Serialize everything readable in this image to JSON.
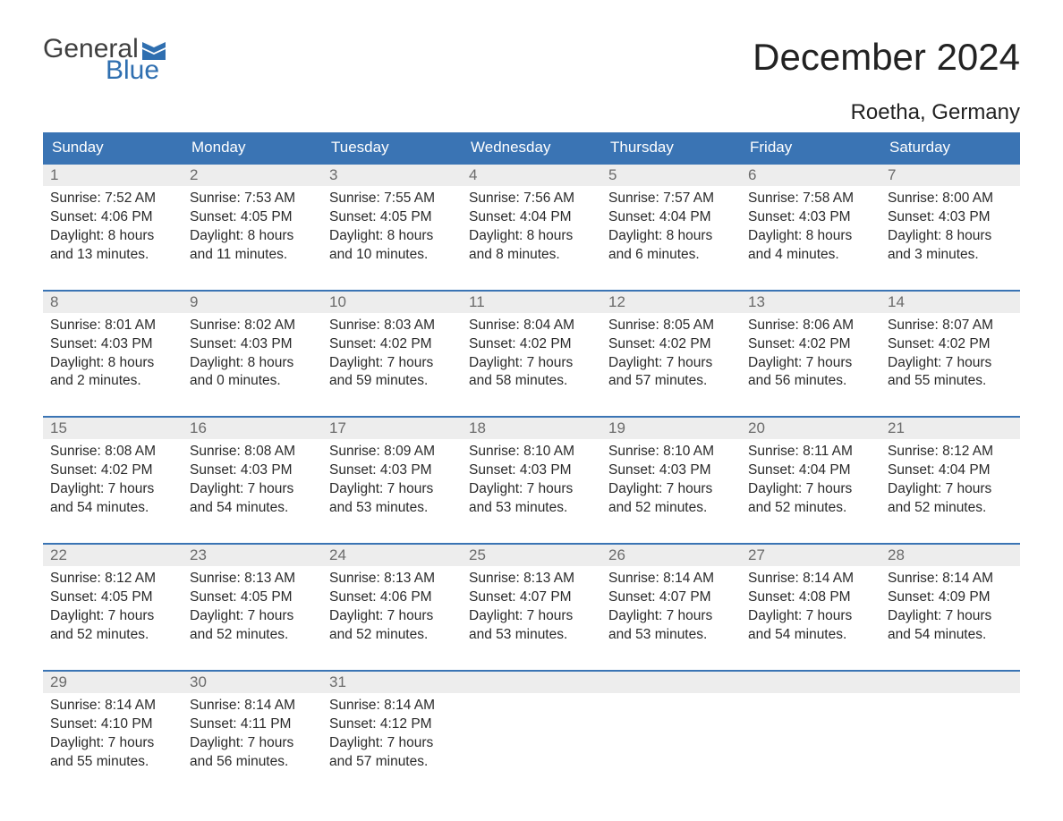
{
  "logo": {
    "text_general": "General",
    "text_blue": "Blue",
    "flag_color": "#2f6fb0"
  },
  "title": "December 2024",
  "location": "Roetha, Germany",
  "colors": {
    "header_bg": "#3a74b4",
    "header_text": "#ffffff",
    "daynum_bg": "#ededed",
    "daynum_text": "#6b6b6b",
    "body_text": "#2a2a2a",
    "week_border": "#3a74b4",
    "page_bg": "#ffffff"
  },
  "typography": {
    "title_fontsize": 42,
    "location_fontsize": 24,
    "header_fontsize": 17,
    "daynum_fontsize": 17,
    "cell_fontsize": 15.5
  },
  "weekdays": [
    "Sunday",
    "Monday",
    "Tuesday",
    "Wednesday",
    "Thursday",
    "Friday",
    "Saturday"
  ],
  "weeks": [
    [
      {
        "n": "1",
        "sr": "Sunrise: 7:52 AM",
        "ss": "Sunset: 4:06 PM",
        "d1": "Daylight: 8 hours",
        "d2": "and 13 minutes."
      },
      {
        "n": "2",
        "sr": "Sunrise: 7:53 AM",
        "ss": "Sunset: 4:05 PM",
        "d1": "Daylight: 8 hours",
        "d2": "and 11 minutes."
      },
      {
        "n": "3",
        "sr": "Sunrise: 7:55 AM",
        "ss": "Sunset: 4:05 PM",
        "d1": "Daylight: 8 hours",
        "d2": "and 10 minutes."
      },
      {
        "n": "4",
        "sr": "Sunrise: 7:56 AM",
        "ss": "Sunset: 4:04 PM",
        "d1": "Daylight: 8 hours",
        "d2": "and 8 minutes."
      },
      {
        "n": "5",
        "sr": "Sunrise: 7:57 AM",
        "ss": "Sunset: 4:04 PM",
        "d1": "Daylight: 8 hours",
        "d2": "and 6 minutes."
      },
      {
        "n": "6",
        "sr": "Sunrise: 7:58 AM",
        "ss": "Sunset: 4:03 PM",
        "d1": "Daylight: 8 hours",
        "d2": "and 4 minutes."
      },
      {
        "n": "7",
        "sr": "Sunrise: 8:00 AM",
        "ss": "Sunset: 4:03 PM",
        "d1": "Daylight: 8 hours",
        "d2": "and 3 minutes."
      }
    ],
    [
      {
        "n": "8",
        "sr": "Sunrise: 8:01 AM",
        "ss": "Sunset: 4:03 PM",
        "d1": "Daylight: 8 hours",
        "d2": "and 2 minutes."
      },
      {
        "n": "9",
        "sr": "Sunrise: 8:02 AM",
        "ss": "Sunset: 4:03 PM",
        "d1": "Daylight: 8 hours",
        "d2": "and 0 minutes."
      },
      {
        "n": "10",
        "sr": "Sunrise: 8:03 AM",
        "ss": "Sunset: 4:02 PM",
        "d1": "Daylight: 7 hours",
        "d2": "and 59 minutes."
      },
      {
        "n": "11",
        "sr": "Sunrise: 8:04 AM",
        "ss": "Sunset: 4:02 PM",
        "d1": "Daylight: 7 hours",
        "d2": "and 58 minutes."
      },
      {
        "n": "12",
        "sr": "Sunrise: 8:05 AM",
        "ss": "Sunset: 4:02 PM",
        "d1": "Daylight: 7 hours",
        "d2": "and 57 minutes."
      },
      {
        "n": "13",
        "sr": "Sunrise: 8:06 AM",
        "ss": "Sunset: 4:02 PM",
        "d1": "Daylight: 7 hours",
        "d2": "and 56 minutes."
      },
      {
        "n": "14",
        "sr": "Sunrise: 8:07 AM",
        "ss": "Sunset: 4:02 PM",
        "d1": "Daylight: 7 hours",
        "d2": "and 55 minutes."
      }
    ],
    [
      {
        "n": "15",
        "sr": "Sunrise: 8:08 AM",
        "ss": "Sunset: 4:02 PM",
        "d1": "Daylight: 7 hours",
        "d2": "and 54 minutes."
      },
      {
        "n": "16",
        "sr": "Sunrise: 8:08 AM",
        "ss": "Sunset: 4:03 PM",
        "d1": "Daylight: 7 hours",
        "d2": "and 54 minutes."
      },
      {
        "n": "17",
        "sr": "Sunrise: 8:09 AM",
        "ss": "Sunset: 4:03 PM",
        "d1": "Daylight: 7 hours",
        "d2": "and 53 minutes."
      },
      {
        "n": "18",
        "sr": "Sunrise: 8:10 AM",
        "ss": "Sunset: 4:03 PM",
        "d1": "Daylight: 7 hours",
        "d2": "and 53 minutes."
      },
      {
        "n": "19",
        "sr": "Sunrise: 8:10 AM",
        "ss": "Sunset: 4:03 PM",
        "d1": "Daylight: 7 hours",
        "d2": "and 52 minutes."
      },
      {
        "n": "20",
        "sr": "Sunrise: 8:11 AM",
        "ss": "Sunset: 4:04 PM",
        "d1": "Daylight: 7 hours",
        "d2": "and 52 minutes."
      },
      {
        "n": "21",
        "sr": "Sunrise: 8:12 AM",
        "ss": "Sunset: 4:04 PM",
        "d1": "Daylight: 7 hours",
        "d2": "and 52 minutes."
      }
    ],
    [
      {
        "n": "22",
        "sr": "Sunrise: 8:12 AM",
        "ss": "Sunset: 4:05 PM",
        "d1": "Daylight: 7 hours",
        "d2": "and 52 minutes."
      },
      {
        "n": "23",
        "sr": "Sunrise: 8:13 AM",
        "ss": "Sunset: 4:05 PM",
        "d1": "Daylight: 7 hours",
        "d2": "and 52 minutes."
      },
      {
        "n": "24",
        "sr": "Sunrise: 8:13 AM",
        "ss": "Sunset: 4:06 PM",
        "d1": "Daylight: 7 hours",
        "d2": "and 52 minutes."
      },
      {
        "n": "25",
        "sr": "Sunrise: 8:13 AM",
        "ss": "Sunset: 4:07 PM",
        "d1": "Daylight: 7 hours",
        "d2": "and 53 minutes."
      },
      {
        "n": "26",
        "sr": "Sunrise: 8:14 AM",
        "ss": "Sunset: 4:07 PM",
        "d1": "Daylight: 7 hours",
        "d2": "and 53 minutes."
      },
      {
        "n": "27",
        "sr": "Sunrise: 8:14 AM",
        "ss": "Sunset: 4:08 PM",
        "d1": "Daylight: 7 hours",
        "d2": "and 54 minutes."
      },
      {
        "n": "28",
        "sr": "Sunrise: 8:14 AM",
        "ss": "Sunset: 4:09 PM",
        "d1": "Daylight: 7 hours",
        "d2": "and 54 minutes."
      }
    ],
    [
      {
        "n": "29",
        "sr": "Sunrise: 8:14 AM",
        "ss": "Sunset: 4:10 PM",
        "d1": "Daylight: 7 hours",
        "d2": "and 55 minutes."
      },
      {
        "n": "30",
        "sr": "Sunrise: 8:14 AM",
        "ss": "Sunset: 4:11 PM",
        "d1": "Daylight: 7 hours",
        "d2": "and 56 minutes."
      },
      {
        "n": "31",
        "sr": "Sunrise: 8:14 AM",
        "ss": "Sunset: 4:12 PM",
        "d1": "Daylight: 7 hours",
        "d2": "and 57 minutes."
      },
      null,
      null,
      null,
      null
    ]
  ]
}
